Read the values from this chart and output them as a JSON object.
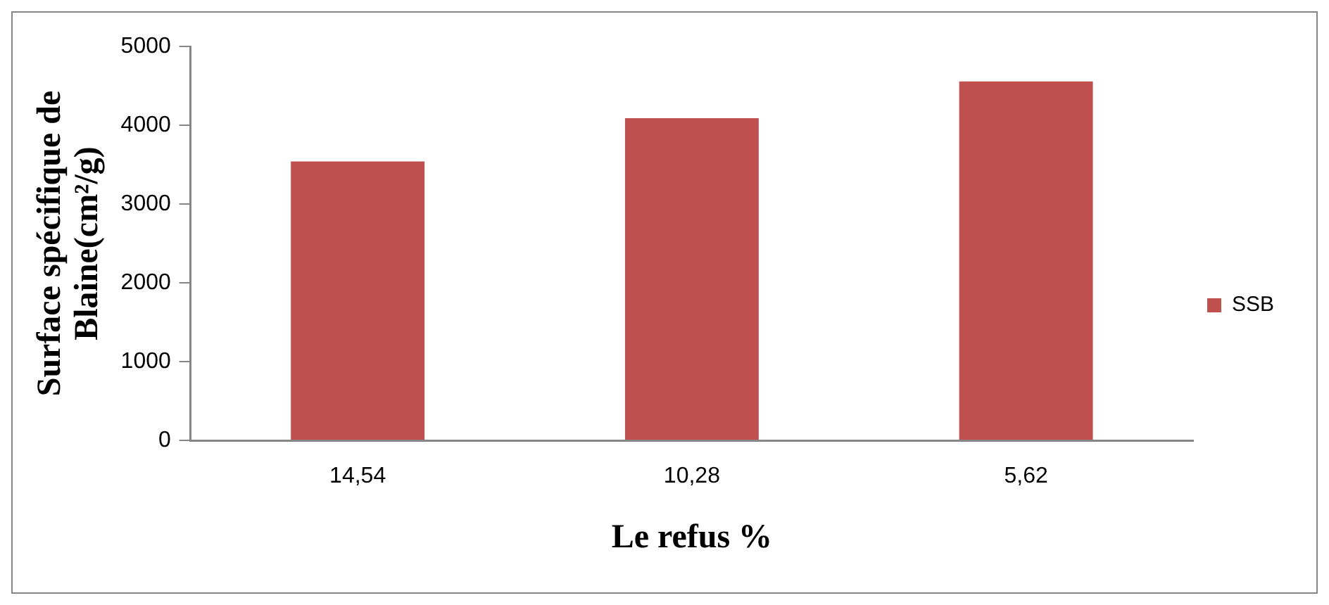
{
  "chart_data": {
    "type": "bar",
    "xlabel": "Le refus %",
    "ylabel": "Surface spécifique de Blaine(cm²/g)",
    "categories": [
      "14,54",
      "10,28",
      "5,62"
    ],
    "series": [
      {
        "name": "SSB",
        "color": "#c0504d",
        "values": [
          3540,
          4090,
          4555
        ]
      }
    ],
    "ylim": [
      0,
      5000
    ],
    "yticks": [
      0,
      1000,
      2000,
      3000,
      4000,
      5000
    ],
    "grid": false,
    "legend": "right"
  }
}
